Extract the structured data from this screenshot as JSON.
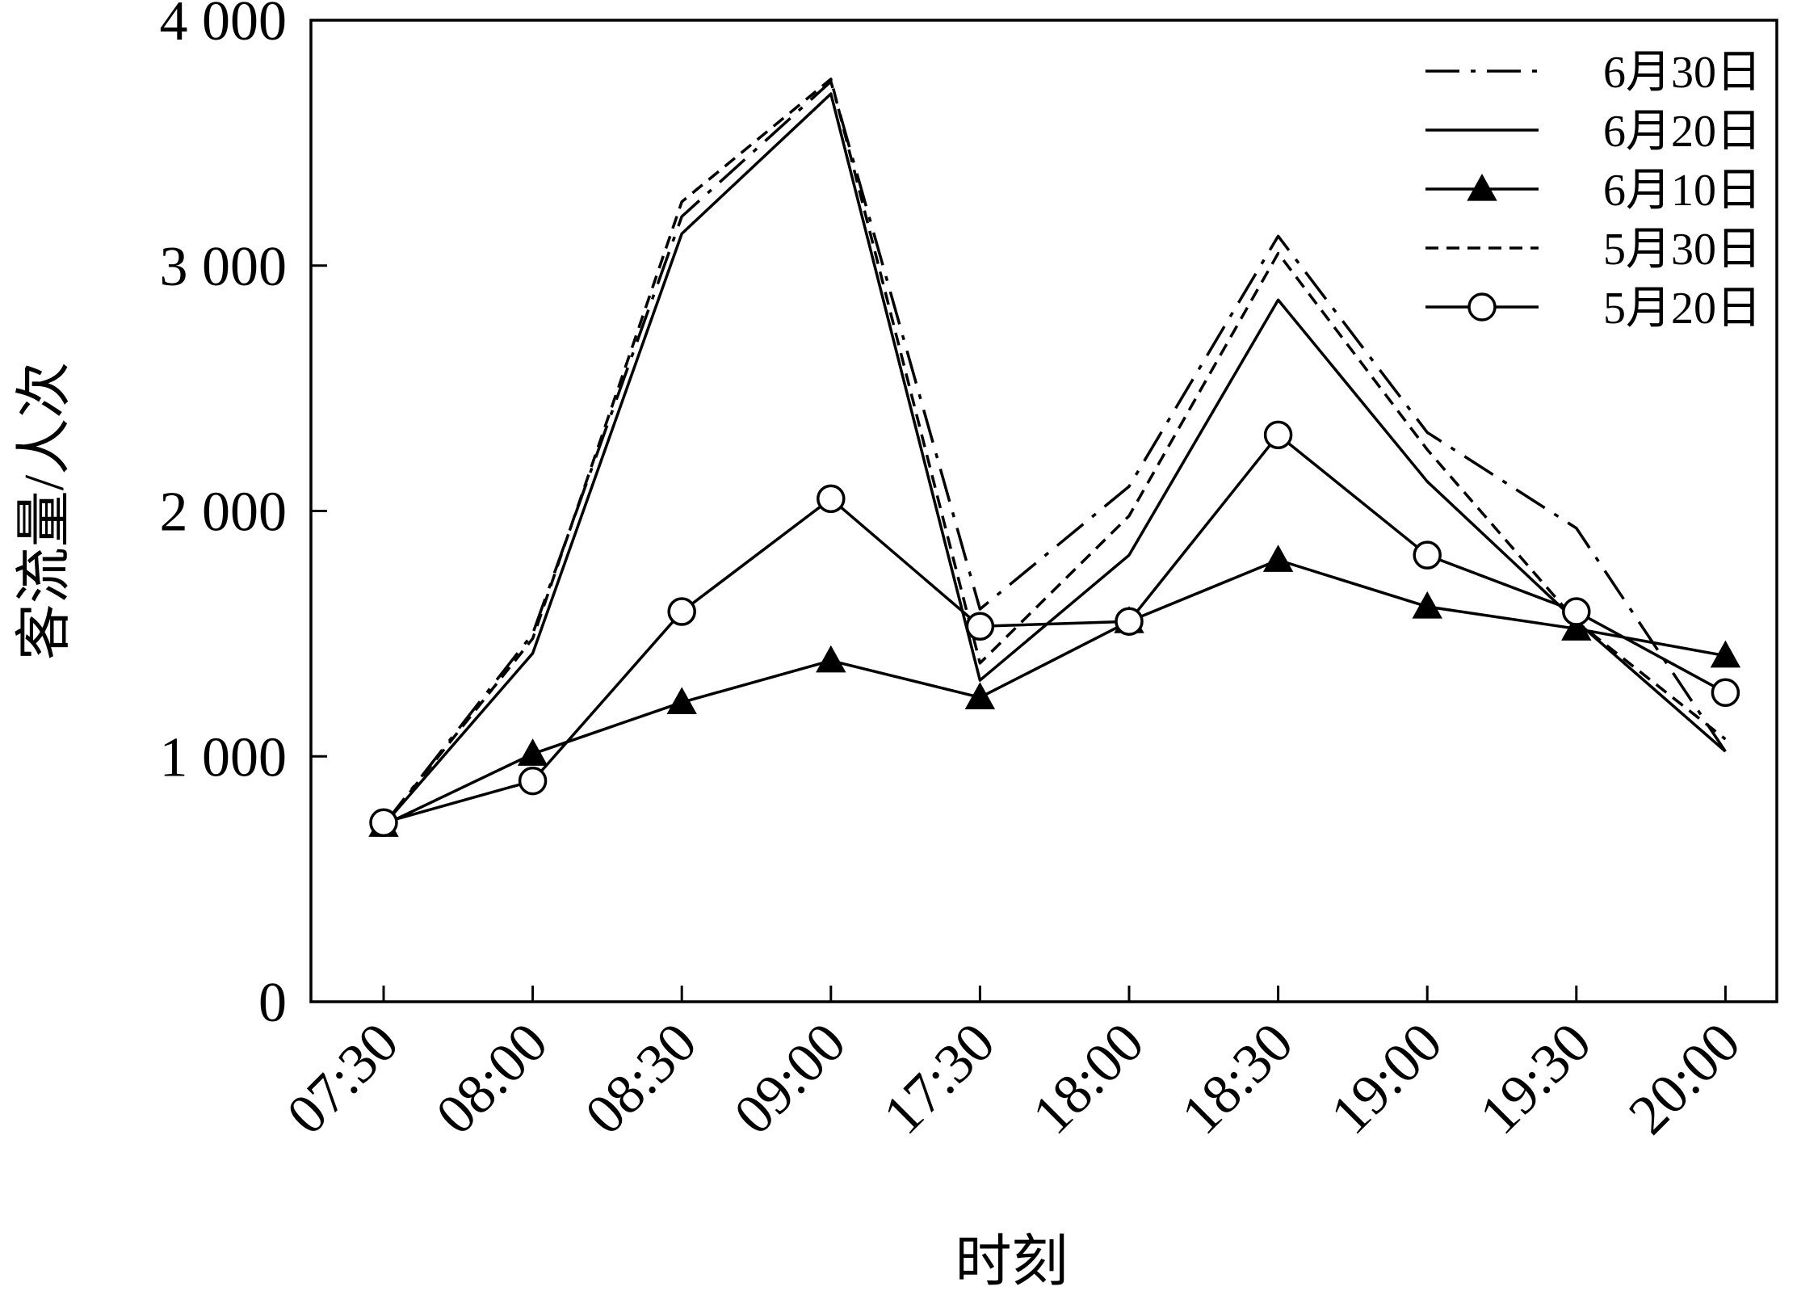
{
  "chart_data": {
    "type": "line",
    "xlabel": "时刻",
    "ylabel": "客流量/人次",
    "categories": [
      "07:30",
      "08:00",
      "08:30",
      "09:00",
      "17:30",
      "18:00",
      "18:30",
      "19:00",
      "19:30",
      "20:00"
    ],
    "ylim": [
      0,
      4000
    ],
    "yticks": [
      0,
      1000,
      2000,
      3000,
      4000
    ],
    "ytick_labels": [
      "0",
      "1 000",
      "2 000",
      "3 000",
      "4 000"
    ],
    "grid": false,
    "legend_position": "top-right",
    "series": [
      {
        "name": "6月30日",
        "style": "dashdot",
        "marker": "none",
        "color": "#000000",
        "values": [
          720,
          1500,
          3200,
          3750,
          1600,
          2100,
          3120,
          2320,
          1930,
          1020
        ]
      },
      {
        "name": "6月20日",
        "style": "solid",
        "marker": "none",
        "color": "#000000",
        "values": [
          720,
          1420,
          3130,
          3700,
          1310,
          1820,
          2860,
          2120,
          1550,
          1020
        ]
      },
      {
        "name": "6月10日",
        "style": "solid",
        "marker": "triangle",
        "color": "#000000",
        "values": [
          720,
          1010,
          1220,
          1390,
          1240,
          1550,
          1800,
          1610,
          1520,
          1410
        ]
      },
      {
        "name": "5月30日",
        "style": "dashed",
        "marker": "none",
        "color": "#000000",
        "values": [
          720,
          1480,
          3260,
          3760,
          1380,
          1980,
          3050,
          2250,
          1550,
          1070
        ]
      },
      {
        "name": "5月20日",
        "style": "solid",
        "marker": "circle",
        "color": "#000000",
        "values": [
          730,
          900,
          1590,
          2050,
          1530,
          1550,
          2310,
          1820,
          1590,
          1260
        ]
      }
    ]
  }
}
